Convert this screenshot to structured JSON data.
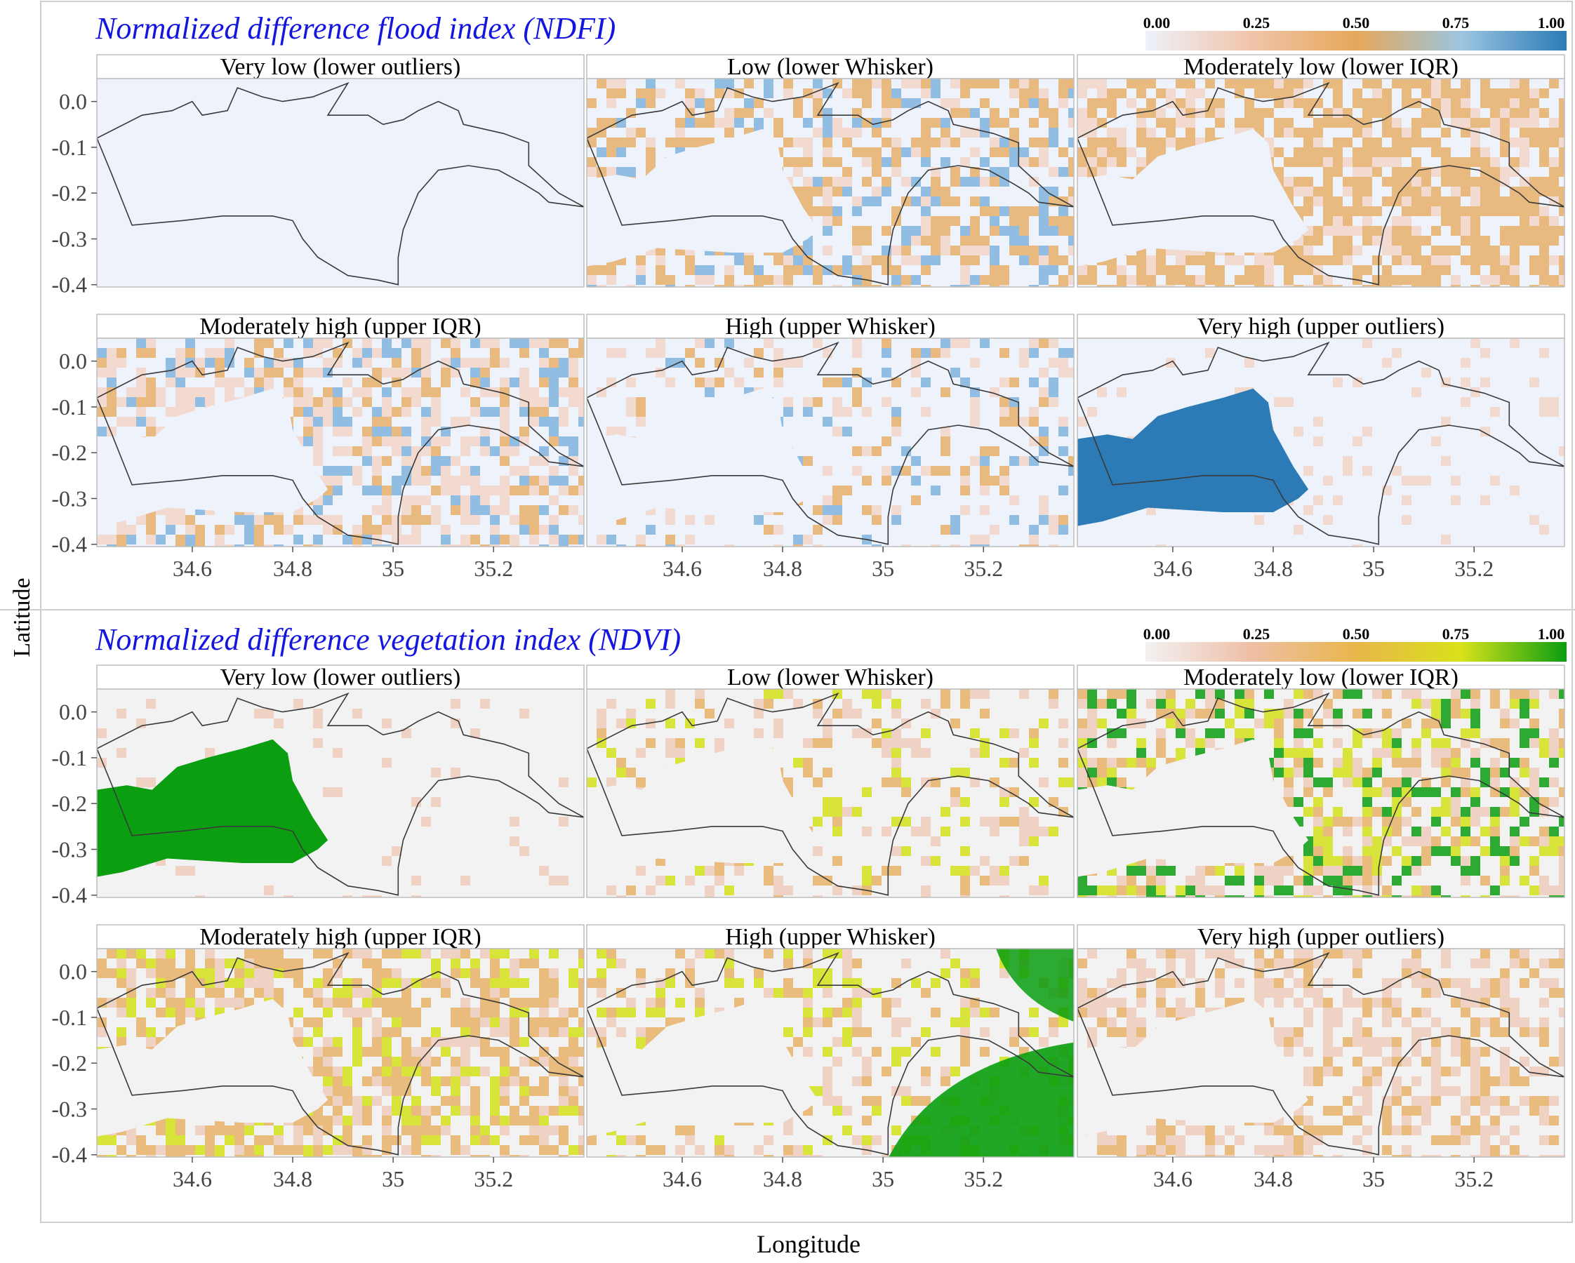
{
  "figure": {
    "ylabel": "Latitude",
    "xlabel": "Longitude",
    "x_ticks": [
      "34.6",
      "34.8",
      "35",
      "35.2"
    ],
    "y_ticks": [
      "0.0",
      "-0.1",
      "-0.2",
      "-0.3",
      "-0.4"
    ]
  },
  "sections": [
    {
      "id": "ndfi",
      "title": "Normalized difference flood index (NDFI)",
      "legend": {
        "ticks": [
          "0.00",
          "0.25",
          "0.50",
          "0.75",
          "1.00"
        ],
        "colors": [
          "#eef2fb",
          "#f0c4aa",
          "#e6a85a",
          "#9cc5e0",
          "#2c7bb6"
        ]
      },
      "panels": [
        {
          "title": "Very low (lower outliers)",
          "pattern": "uniform"
        },
        {
          "title": "Low (lower Whisker)",
          "pattern": "mid-ring"
        },
        {
          "title": "Moderately low (lower IQR)",
          "pattern": "orange-ring"
        },
        {
          "title": "Moderately high (upper IQR)",
          "pattern": "pink-ring"
        },
        {
          "title": "High (upper Whisker)",
          "pattern": "light-edge"
        },
        {
          "title": "Very high (upper outliers)",
          "pattern": "lake-blob"
        }
      ]
    },
    {
      "id": "ndvi",
      "title": "Normalized difference vegetation index (NDVI)",
      "legend": {
        "ticks": [
          "0.00",
          "0.25",
          "0.50",
          "0.75",
          "1.00"
        ],
        "colors": [
          "#f2f2f2",
          "#efbfa6",
          "#e8b64a",
          "#d8e21a",
          "#0a9e10"
        ]
      },
      "panels": [
        {
          "title": "Very low (lower outliers)",
          "pattern": "lake-blob"
        },
        {
          "title": "Low (lower Whisker)",
          "pattern": "light-edge"
        },
        {
          "title": "Moderately low (lower IQR)",
          "pattern": "green-ring"
        },
        {
          "title": "Moderately high (upper IQR)",
          "pattern": "yellow-ring"
        },
        {
          "title": "High (upper Whisker)",
          "pattern": "green-east"
        },
        {
          "title": "Very high (upper outliers)",
          "pattern": "pink-haze"
        }
      ]
    }
  ]
}
